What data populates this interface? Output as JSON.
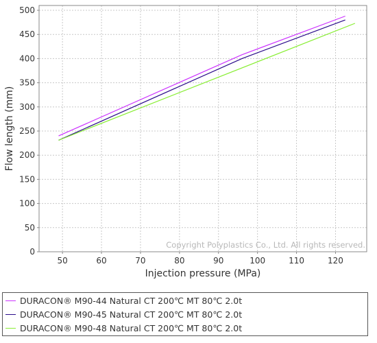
{
  "chart_data": {
    "type": "line",
    "xlabel": "Injection pressure (MPa)",
    "ylabel": "Flow length (mm)",
    "xlim": [
      44,
      128
    ],
    "ylim": [
      0,
      510
    ],
    "x_ticks": [
      50,
      60,
      70,
      80,
      90,
      100,
      110,
      120
    ],
    "y_ticks": [
      0,
      50,
      100,
      150,
      200,
      250,
      300,
      350,
      400,
      450,
      500
    ],
    "grid": true,
    "legend_position": "bottom",
    "watermark": "Copyright Polyplastics Co., Ltd. All rights reserved.",
    "series": [
      {
        "name": "DURACON® M90-44 Natural CT 200℃ MT 80℃ 2.0t",
        "color": "#cc33ff",
        "x": [
          49,
          96,
          122.5
        ],
        "y": [
          240,
          408,
          488
        ]
      },
      {
        "name": "DURACON® M90-45 Natural CT 200℃ MT 80℃ 2.0t",
        "color": "#2a0a8a",
        "x": [
          49,
          96,
          122.5
        ],
        "y": [
          231,
          400,
          480
        ]
      },
      {
        "name": "DURACON® M90-48 Natural CT 200℃ MT 80℃ 2.0t",
        "color": "#88ee33",
        "x": [
          49,
          125
        ],
        "y": [
          231,
          473
        ]
      }
    ]
  }
}
